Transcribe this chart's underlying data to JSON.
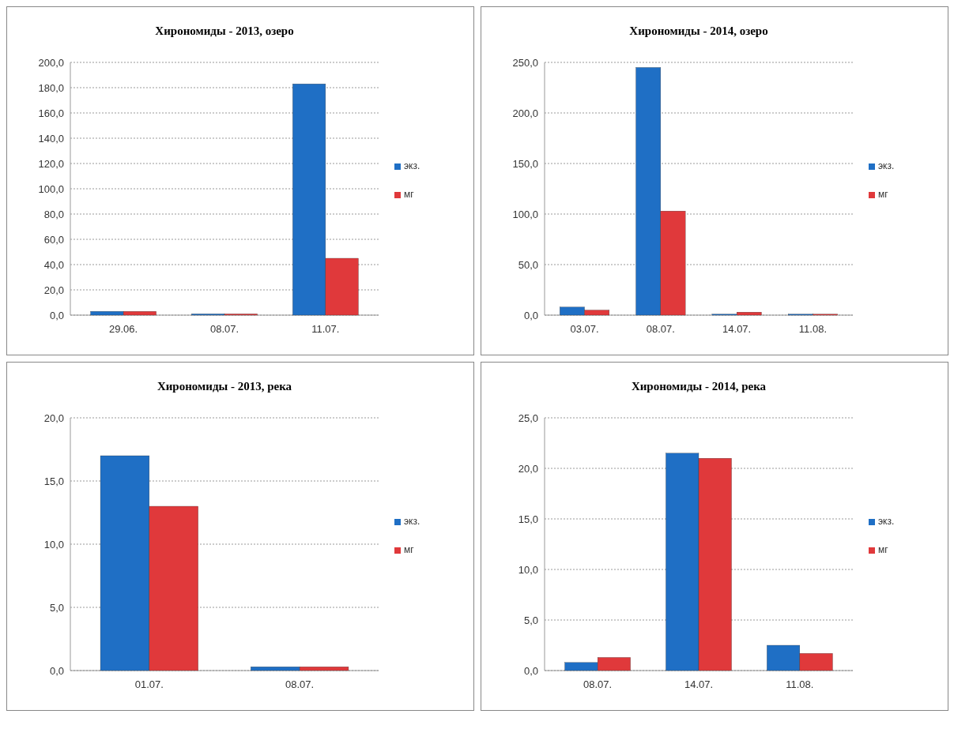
{
  "chart_data": [
    {
      "type": "bar",
      "title": "Хирономиды - 2013, озеро",
      "categories": [
        "29.06.",
        "08.07.",
        "11.07."
      ],
      "series": [
        {
          "name": "экз.",
          "color": "#1f6fc5",
          "values": [
            3,
            1,
            183
          ]
        },
        {
          "name": "мг",
          "color": "#e0393b",
          "values": [
            3,
            1,
            45
          ]
        }
      ],
      "ylim": [
        0,
        200
      ],
      "yticks": [
        {
          "value": 0,
          "label": "0,0"
        },
        {
          "value": 20,
          "label": "20,0"
        },
        {
          "value": 40,
          "label": "40,0"
        },
        {
          "value": 60,
          "label": "60,0"
        },
        {
          "value": 80,
          "label": "80,0"
        },
        {
          "value": 100,
          "label": "100,0"
        },
        {
          "value": 120,
          "label": "120,0"
        },
        {
          "value": 140,
          "label": "140,0"
        },
        {
          "value": 160,
          "label": "160,0"
        },
        {
          "value": 180,
          "label": "180,0"
        },
        {
          "value": 200,
          "label": "200,0"
        }
      ],
      "grid": "y",
      "legend": "right"
    },
    {
      "type": "bar",
      "title": "Хирономиды - 2014, озеро",
      "categories": [
        "03.07.",
        "08.07.",
        "14.07.",
        "11.08."
      ],
      "series": [
        {
          "name": "экз.",
          "color": "#1f6fc5",
          "values": [
            8,
            245,
            1,
            1
          ]
        },
        {
          "name": "мг",
          "color": "#e0393b",
          "values": [
            5,
            103,
            3,
            1
          ]
        }
      ],
      "ylim": [
        0,
        250
      ],
      "yticks": [
        {
          "value": 0,
          "label": "0,0"
        },
        {
          "value": 50,
          "label": "50,0"
        },
        {
          "value": 100,
          "label": "100,0"
        },
        {
          "value": 150,
          "label": "150,0"
        },
        {
          "value": 200,
          "label": "200,0"
        },
        {
          "value": 250,
          "label": "250,0"
        }
      ],
      "grid": "y",
      "legend": "right"
    },
    {
      "type": "bar",
      "title": "Хирономиды - 2013, река",
      "categories": [
        "01.07.",
        "08.07."
      ],
      "series": [
        {
          "name": "экз.",
          "color": "#1f6fc5",
          "values": [
            17,
            0.3
          ]
        },
        {
          "name": "мг",
          "color": "#e0393b",
          "values": [
            13,
            0.3
          ]
        }
      ],
      "ylim": [
        0,
        20
      ],
      "yticks": [
        {
          "value": 0,
          "label": "0,0"
        },
        {
          "value": 5,
          "label": "5,0"
        },
        {
          "value": 10,
          "label": "10,0"
        },
        {
          "value": 15,
          "label": "15,0"
        },
        {
          "value": 20,
          "label": "20,0"
        }
      ],
      "grid": "y",
      "legend": "right"
    },
    {
      "type": "bar",
      "title": "Хирономиды - 2014, река",
      "categories": [
        "08.07.",
        "14.07.",
        "11.08."
      ],
      "series": [
        {
          "name": "экз.",
          "color": "#1f6fc5",
          "values": [
            0.8,
            21.5,
            2.5
          ]
        },
        {
          "name": "мг",
          "color": "#e0393b",
          "values": [
            1.3,
            21,
            1.7
          ]
        }
      ],
      "ylim": [
        0,
        25
      ],
      "yticks": [
        {
          "value": 0,
          "label": "0,0"
        },
        {
          "value": 5,
          "label": "5,0"
        },
        {
          "value": 10,
          "label": "10,0"
        },
        {
          "value": 15,
          "label": "15,0"
        },
        {
          "value": 20,
          "label": "20,0"
        },
        {
          "value": 25,
          "label": "25,0"
        }
      ],
      "grid": "y",
      "legend": "right"
    }
  ]
}
